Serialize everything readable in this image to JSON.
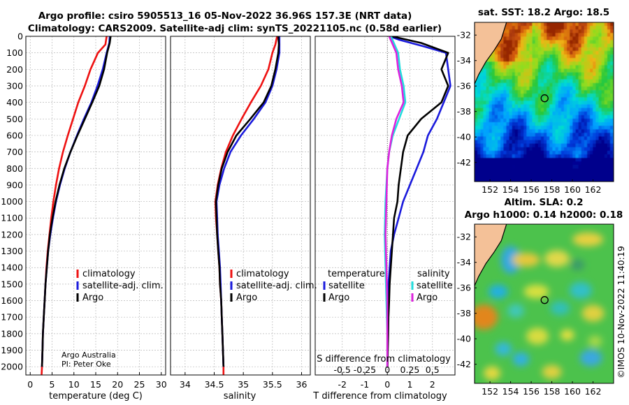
{
  "colors": {
    "climatology": "#ee1111",
    "satellite": "#1a1adc",
    "argo": "#000000",
    "sat_salinity": "#22dddd",
    "argo_salinity": "#dd22dd",
    "land": "#f4c198"
  },
  "header": {
    "line1": "Argo profile: csiro 5905513_16 05-Nov-2022 36.96S 157.3E (NRT data)",
    "line2": "Climatology: CARS2009. Satellite-adj clim: synTS_20221105.nc (0.58d earlier)"
  },
  "chart_data": [
    {
      "type": "line",
      "panel": "temperature",
      "xlabel": "temperature (deg C)",
      "ylabel": "",
      "xlim": [
        -1,
        31
      ],
      "ylim": [
        2050,
        0
      ],
      "xticks": [
        0,
        5,
        10,
        15,
        20,
        25,
        30
      ],
      "yticks": [
        0,
        100,
        200,
        300,
        400,
        500,
        600,
        700,
        800,
        900,
        1000,
        1100,
        1200,
        1300,
        1400,
        1500,
        1600,
        1700,
        1800,
        1900,
        2000
      ],
      "legend": [
        "climatology",
        "satellite-adj. clim.",
        "Argo"
      ],
      "credit": [
        "Argo Australia",
        "PI: Peter Oke"
      ],
      "series": [
        {
          "name": "climatology",
          "color_key": "climatology",
          "points": [
            [
              17.5,
              0
            ],
            [
              17.2,
              50
            ],
            [
              15.5,
              100
            ],
            [
              13.8,
              200
            ],
            [
              12.5,
              300
            ],
            [
              11.0,
              400
            ],
            [
              9.8,
              500
            ],
            [
              8.6,
              600
            ],
            [
              7.5,
              700
            ],
            [
              6.6,
              800
            ],
            [
              5.9,
              900
            ],
            [
              5.3,
              1000
            ],
            [
              4.8,
              1100
            ],
            [
              4.4,
              1200
            ],
            [
              4.0,
              1300
            ],
            [
              3.7,
              1400
            ],
            [
              3.5,
              1500
            ],
            [
              3.3,
              1600
            ],
            [
              3.1,
              1700
            ],
            [
              2.9,
              1800
            ],
            [
              2.8,
              1900
            ],
            [
              2.7,
              2000
            ],
            [
              2.6,
              2050
            ]
          ]
        },
        {
          "name": "satellite-adj. clim.",
          "color_key": "satellite",
          "points": [
            [
              18.2,
              0
            ],
            [
              18.1,
              40
            ],
            [
              17.5,
              100
            ],
            [
              16.6,
              200
            ],
            [
              15.4,
              300
            ],
            [
              14.0,
              400
            ],
            [
              12.3,
              500
            ],
            [
              10.7,
              600
            ],
            [
              9.2,
              700
            ],
            [
              7.9,
              800
            ],
            [
              6.8,
              900
            ],
            [
              5.9,
              1000
            ],
            [
              5.2,
              1100
            ],
            [
              4.6,
              1200
            ],
            [
              4.1,
              1300
            ],
            [
              3.8,
              1400
            ],
            [
              3.5,
              1500
            ],
            [
              3.3,
              1600
            ],
            [
              3.1,
              1700
            ],
            [
              2.9,
              1800
            ],
            [
              2.8,
              1900
            ],
            [
              2.7,
              2000
            ]
          ]
        },
        {
          "name": "Argo",
          "color_key": "argo",
          "points": [
            [
              18.4,
              0
            ],
            [
              18.2,
              40
            ],
            [
              17.6,
              100
            ],
            [
              16.9,
              200
            ],
            [
              15.8,
              300
            ],
            [
              14.2,
              400
            ],
            [
              12.5,
              500
            ],
            [
              10.8,
              600
            ],
            [
              9.2,
              700
            ],
            [
              7.8,
              800
            ],
            [
              6.7,
              900
            ],
            [
              5.8,
              1000
            ],
            [
              5.1,
              1100
            ],
            [
              4.5,
              1200
            ],
            [
              4.1,
              1300
            ],
            [
              3.8,
              1400
            ],
            [
              3.5,
              1500
            ],
            [
              3.3,
              1600
            ],
            [
              3.1,
              1700
            ],
            [
              2.9,
              1800
            ],
            [
              2.8,
              1900
            ],
            [
              2.7,
              2000
            ]
          ]
        }
      ]
    },
    {
      "type": "line",
      "panel": "salinity",
      "xlabel": "salinity",
      "ylabel": "",
      "xlim": [
        33.75,
        36.15
      ],
      "ylim": [
        2050,
        0
      ],
      "xticks": [
        34,
        34.5,
        35,
        35.5,
        36
      ],
      "legend": [
        "climatology",
        "satellite-adj. clim.",
        "Argo"
      ],
      "series": [
        {
          "name": "climatology",
          "color_key": "climatology",
          "points": [
            [
              35.58,
              0
            ],
            [
              35.55,
              50
            ],
            [
              35.5,
              100
            ],
            [
              35.43,
              200
            ],
            [
              35.3,
              300
            ],
            [
              35.13,
              400
            ],
            [
              34.97,
              500
            ],
            [
              34.82,
              600
            ],
            [
              34.7,
              700
            ],
            [
              34.62,
              800
            ],
            [
              34.56,
              900
            ],
            [
              34.52,
              1000
            ],
            [
              34.53,
              1100
            ],
            [
              34.55,
              1200
            ],
            [
              34.57,
              1300
            ],
            [
              34.59,
              1400
            ],
            [
              34.6,
              1500
            ],
            [
              34.62,
              1600
            ],
            [
              34.63,
              1700
            ],
            [
              34.64,
              1800
            ],
            [
              34.65,
              1900
            ],
            [
              34.66,
              2000
            ],
            [
              34.66,
              2050
            ]
          ]
        },
        {
          "name": "satellite-adj. clim.",
          "color_key": "satellite",
          "points": [
            [
              35.62,
              0
            ],
            [
              35.62,
              50
            ],
            [
              35.62,
              100
            ],
            [
              35.57,
              200
            ],
            [
              35.5,
              300
            ],
            [
              35.38,
              400
            ],
            [
              35.18,
              500
            ],
            [
              34.96,
              600
            ],
            [
              34.78,
              700
            ],
            [
              34.67,
              800
            ],
            [
              34.59,
              900
            ],
            [
              34.54,
              1000
            ],
            [
              34.55,
              1100
            ],
            [
              34.56,
              1200
            ],
            [
              34.58,
              1300
            ],
            [
              34.6,
              1400
            ],
            [
              34.61,
              1500
            ],
            [
              34.62,
              1600
            ],
            [
              34.63,
              1700
            ],
            [
              34.64,
              1800
            ],
            [
              34.65,
              1900
            ],
            [
              34.66,
              2000
            ]
          ]
        },
        {
          "name": "Argo",
          "color_key": "argo",
          "points": [
            [
              35.6,
              0
            ],
            [
              35.61,
              50
            ],
            [
              35.6,
              100
            ],
            [
              35.55,
              200
            ],
            [
              35.48,
              300
            ],
            [
              35.35,
              400
            ],
            [
              35.12,
              500
            ],
            [
              34.88,
              600
            ],
            [
              34.73,
              700
            ],
            [
              34.63,
              800
            ],
            [
              34.57,
              900
            ],
            [
              34.53,
              1000
            ],
            [
              34.54,
              1100
            ],
            [
              34.55,
              1200
            ],
            [
              34.57,
              1300
            ],
            [
              34.59,
              1400
            ],
            [
              34.6,
              1500
            ],
            [
              34.62,
              1600
            ],
            [
              34.63,
              1700
            ],
            [
              34.64,
              1800
            ],
            [
              34.65,
              1900
            ],
            [
              34.66,
              2000
            ]
          ]
        }
      ]
    },
    {
      "type": "line",
      "panel": "difference",
      "xlabel": "T difference from climatology",
      "xlabel_top": "S difference from climatology",
      "xlim": [
        -3.2,
        3.0
      ],
      "ylim": [
        2050,
        0
      ],
      "xticks": [
        -2,
        -1,
        0,
        1,
        2
      ],
      "s_ticks": [
        "-0.5",
        "-0.25",
        "0",
        "0.25",
        "0.5"
      ],
      "legend_temperature": {
        "heading": "temperature",
        "items": [
          "satellite",
          "Argo"
        ]
      },
      "legend_salinity": {
        "heading": "salinity",
        "items": [
          "satellite",
          "Argo"
        ]
      },
      "series": [
        {
          "name": "temperature satellite",
          "color_key": "satellite",
          "points": [
            [
              0.1,
              0
            ],
            [
              0.5,
              20
            ],
            [
              1.6,
              60
            ],
            [
              2.6,
              100
            ],
            [
              2.7,
              200
            ],
            [
              2.8,
              300
            ],
            [
              2.5,
              400
            ],
            [
              2.2,
              500
            ],
            [
              1.8,
              600
            ],
            [
              1.6,
              700
            ],
            [
              1.3,
              800
            ],
            [
              1.0,
              900
            ],
            [
              0.7,
              1000
            ],
            [
              0.5,
              1100
            ],
            [
              0.3,
              1200
            ],
            [
              0.15,
              1300
            ],
            [
              0.1,
              1400
            ],
            [
              0.05,
              1500
            ],
            [
              0.03,
              1600
            ],
            [
              0.02,
              1800
            ],
            [
              0.0,
              2000
            ]
          ]
        },
        {
          "name": "temperature Argo",
          "color_key": "argo",
          "points": [
            [
              0.2,
              0
            ],
            [
              1.5,
              40
            ],
            [
              2.7,
              100
            ],
            [
              2.4,
              200
            ],
            [
              2.7,
              300
            ],
            [
              2.4,
              400
            ],
            [
              1.5,
              500
            ],
            [
              0.9,
              600
            ],
            [
              0.7,
              700
            ],
            [
              0.6,
              800
            ],
            [
              0.5,
              900
            ],
            [
              0.45,
              1000
            ],
            [
              0.3,
              1100
            ],
            [
              0.25,
              1200
            ],
            [
              0.2,
              1300
            ],
            [
              0.15,
              1400
            ],
            [
              0.1,
              1500
            ],
            [
              0.08,
              1600
            ],
            [
              0.05,
              1700
            ],
            [
              0.04,
              1800
            ],
            [
              0.02,
              1900
            ],
            [
              0.01,
              2000
            ]
          ]
        },
        {
          "name": "salinity satellite",
          "color_key": "sat_salinity",
          "points": [
            [
              0.04,
              0
            ],
            [
              0.08,
              50
            ],
            [
              0.12,
              100
            ],
            [
              0.14,
              200
            ],
            [
              0.18,
              300
            ],
            [
              0.2,
              400
            ],
            [
              0.13,
              500
            ],
            [
              0.06,
              600
            ],
            [
              0.02,
              700
            ],
            [
              0.0,
              800
            ],
            [
              -0.02,
              1000
            ],
            [
              -0.03,
              1200
            ],
            [
              -0.02,
              1400
            ],
            [
              -0.01,
              1600
            ],
            [
              0.0,
              1800
            ],
            [
              0.0,
              2000
            ]
          ]
        },
        {
          "name": "salinity Argo",
          "color_key": "argo_salinity",
          "points": [
            [
              0.02,
              0
            ],
            [
              0.06,
              50
            ],
            [
              0.1,
              100
            ],
            [
              0.12,
              200
            ],
            [
              0.16,
              300
            ],
            [
              0.18,
              400
            ],
            [
              0.1,
              500
            ],
            [
              0.05,
              600
            ],
            [
              0.02,
              700
            ],
            [
              0.0,
              800
            ],
            [
              -0.01,
              1000
            ],
            [
              -0.02,
              1200
            ],
            [
              -0.01,
              1400
            ],
            [
              0.0,
              1600
            ],
            [
              0.0,
              1800
            ],
            [
              0.0,
              2000
            ]
          ]
        }
      ]
    },
    {
      "type": "heatmap",
      "panel": "sst-map",
      "title": "sat. SST: 18.2 Argo: 18.5",
      "xlim": [
        150.5,
        164
      ],
      "ylim": [
        -43.5,
        -31
      ],
      "xticks": [
        152,
        154,
        156,
        158,
        160,
        162
      ],
      "yticks": [
        -32,
        -34,
        -36,
        -38,
        -40,
        -42
      ],
      "marker": {
        "lon": 157.3,
        "lat": -36.96
      }
    },
    {
      "type": "heatmap",
      "panel": "sla-map",
      "title_lines": [
        "Altim. SLA: 0.2",
        "Argo h1000: 0.14 h2000: 0.18"
      ],
      "xlim": [
        150.5,
        164
      ],
      "ylim": [
        -43.5,
        -31
      ],
      "xticks": [
        152,
        154,
        156,
        158,
        160,
        162
      ],
      "yticks": [
        -32,
        -34,
        -36,
        -38,
        -40,
        -42
      ],
      "marker": {
        "lon": 157.3,
        "lat": -36.96
      }
    }
  ],
  "watermark": "©IMOS 10-Nov-2022 11:40:19"
}
